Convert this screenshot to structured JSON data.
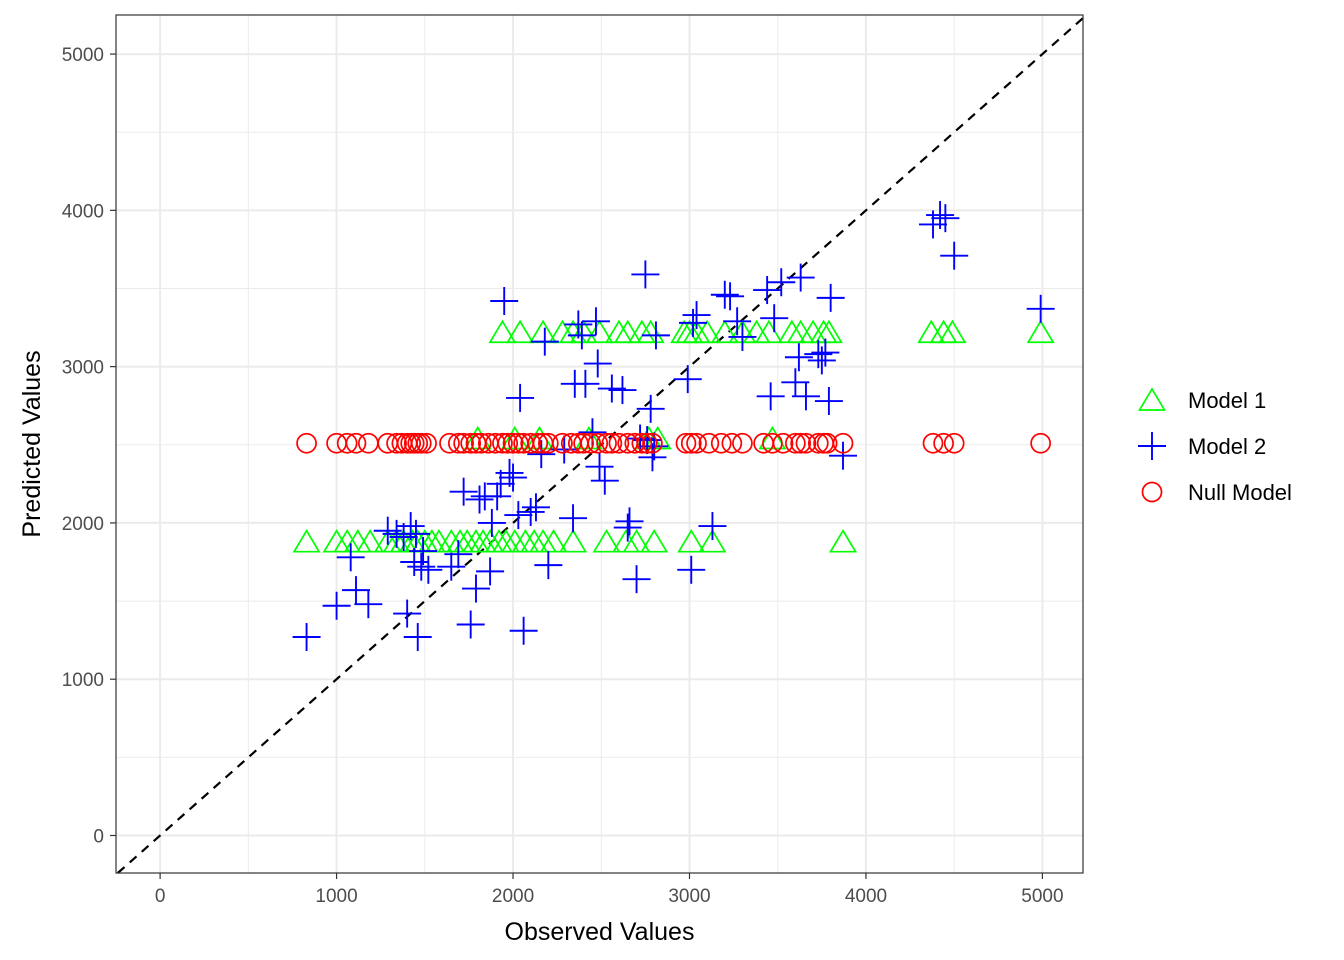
{
  "chart_data": {
    "type": "scatter",
    "title": "",
    "xlabel": "Observed Values",
    "ylabel": "Predicted Values",
    "xlim": [
      -250,
      5230
    ],
    "ylim": [
      -240,
      5250
    ],
    "x_ticks": [
      "0",
      "1000",
      "2000",
      "3000",
      "4000",
      "5000"
    ],
    "y_ticks": [
      "0",
      "1000",
      "2000",
      "3000",
      "4000",
      "5000"
    ],
    "grid": true,
    "reference_line": {
      "type": "y=x",
      "style": "dashed",
      "color": "#000000"
    },
    "legend_position": "right",
    "series": [
      {
        "name": "Model 1",
        "marker": "triangle",
        "color": "#00ff00",
        "points": [
          [
            830,
            1880
          ],
          [
            1000,
            1880
          ],
          [
            1060,
            1880
          ],
          [
            1120,
            1880
          ],
          [
            1190,
            1880
          ],
          [
            1290,
            1880
          ],
          [
            1340,
            1880
          ],
          [
            1380,
            1880
          ],
          [
            1430,
            1880
          ],
          [
            1460,
            1880
          ],
          [
            1500,
            1880
          ],
          [
            1540,
            1880
          ],
          [
            1580,
            1880
          ],
          [
            1650,
            1880
          ],
          [
            1700,
            1880
          ],
          [
            1740,
            1880
          ],
          [
            1790,
            1880
          ],
          [
            1830,
            1880
          ],
          [
            1870,
            1880
          ],
          [
            1920,
            1880
          ],
          [
            1960,
            1880
          ],
          [
            2010,
            1880
          ],
          [
            2070,
            1880
          ],
          [
            2120,
            1880
          ],
          [
            2170,
            1880
          ],
          [
            2230,
            1880
          ],
          [
            2340,
            1880
          ],
          [
            2530,
            1880
          ],
          [
            2640,
            1880
          ],
          [
            2700,
            1880
          ],
          [
            2800,
            1880
          ],
          [
            3010,
            1880
          ],
          [
            3130,
            1880
          ],
          [
            3870,
            1880
          ],
          [
            1800,
            2540
          ],
          [
            2010,
            2540
          ],
          [
            2150,
            2540
          ],
          [
            2430,
            2540
          ],
          [
            2770,
            2540
          ],
          [
            2820,
            2540
          ],
          [
            3470,
            2540
          ],
          [
            1940,
            3220
          ],
          [
            2040,
            3220
          ],
          [
            2170,
            3220
          ],
          [
            2280,
            3220
          ],
          [
            2340,
            3220
          ],
          [
            2400,
            3220
          ],
          [
            2490,
            3220
          ],
          [
            2600,
            3220
          ],
          [
            2650,
            3220
          ],
          [
            2730,
            3220
          ],
          [
            2780,
            3220
          ],
          [
            2970,
            3220
          ],
          [
            3000,
            3220
          ],
          [
            3040,
            3220
          ],
          [
            3100,
            3220
          ],
          [
            3200,
            3220
          ],
          [
            3300,
            3220
          ],
          [
            3380,
            3220
          ],
          [
            3450,
            3220
          ],
          [
            3580,
            3220
          ],
          [
            3630,
            3220
          ],
          [
            3700,
            3220
          ],
          [
            3760,
            3220
          ],
          [
            3790,
            3220
          ],
          [
            4370,
            3220
          ],
          [
            4440,
            3220
          ],
          [
            4490,
            3220
          ],
          [
            4990,
            3220
          ]
        ]
      },
      {
        "name": "Model 2",
        "marker": "plus",
        "color": "#0000ff",
        "points": [
          [
            830,
            1270
          ],
          [
            1000,
            1470
          ],
          [
            1080,
            1780
          ],
          [
            1110,
            1570
          ],
          [
            1180,
            1480
          ],
          [
            1290,
            1950
          ],
          [
            1340,
            1930
          ],
          [
            1380,
            1910
          ],
          [
            1400,
            1420
          ],
          [
            1420,
            1980
          ],
          [
            1440,
            1750
          ],
          [
            1450,
            1930
          ],
          [
            1460,
            1270
          ],
          [
            1480,
            1720
          ],
          [
            1490,
            1820
          ],
          [
            1520,
            1700
          ],
          [
            1650,
            1720
          ],
          [
            1690,
            1800
          ],
          [
            1720,
            2200
          ],
          [
            1760,
            1350
          ],
          [
            1790,
            1580
          ],
          [
            1810,
            2150
          ],
          [
            1840,
            2170
          ],
          [
            1870,
            1690
          ],
          [
            1880,
            2000
          ],
          [
            1910,
            2170
          ],
          [
            1930,
            2250
          ],
          [
            1950,
            3420
          ],
          [
            1980,
            2320
          ],
          [
            2000,
            2290
          ],
          [
            2030,
            2050
          ],
          [
            2040,
            2800
          ],
          [
            2060,
            1310
          ],
          [
            2100,
            2070
          ],
          [
            2130,
            2100
          ],
          [
            2160,
            2440
          ],
          [
            2180,
            3160
          ],
          [
            2200,
            1730
          ],
          [
            2290,
            2470
          ],
          [
            2340,
            2030
          ],
          [
            2350,
            2890
          ],
          [
            2370,
            3270
          ],
          [
            2390,
            3200
          ],
          [
            2410,
            2890
          ],
          [
            2450,
            2580
          ],
          [
            2470,
            3290
          ],
          [
            2480,
            3020
          ],
          [
            2490,
            2360
          ],
          [
            2520,
            2270
          ],
          [
            2560,
            2860
          ],
          [
            2620,
            2850
          ],
          [
            2650,
            1970
          ],
          [
            2660,
            2010
          ],
          [
            2700,
            1640
          ],
          [
            2720,
            2540
          ],
          [
            2750,
            3590
          ],
          [
            2760,
            2530
          ],
          [
            2780,
            2730
          ],
          [
            2790,
            2420
          ],
          [
            2800,
            2490
          ],
          [
            2810,
            3200
          ],
          [
            2990,
            2920
          ],
          [
            3010,
            1700
          ],
          [
            3020,
            3280
          ],
          [
            3040,
            3330
          ],
          [
            3130,
            1980
          ],
          [
            3200,
            3460
          ],
          [
            3230,
            3450
          ],
          [
            3270,
            3290
          ],
          [
            3300,
            3190
          ],
          [
            3440,
            3490
          ],
          [
            3460,
            2810
          ],
          [
            3480,
            3310
          ],
          [
            3520,
            3540
          ],
          [
            3600,
            2900
          ],
          [
            3620,
            3060
          ],
          [
            3630,
            3570
          ],
          [
            3660,
            2810
          ],
          [
            3730,
            3080
          ],
          [
            3750,
            3040
          ],
          [
            3770,
            3090
          ],
          [
            3790,
            2780
          ],
          [
            3800,
            3440
          ],
          [
            3870,
            2430
          ],
          [
            4380,
            3910
          ],
          [
            4420,
            3970
          ],
          [
            4450,
            3950
          ],
          [
            4500,
            3710
          ],
          [
            4990,
            3370
          ]
        ]
      },
      {
        "name": "Null Model",
        "marker": "circle",
        "color": "#ff0000",
        "points": [
          [
            830,
            2510
          ],
          [
            1000,
            2510
          ],
          [
            1060,
            2510
          ],
          [
            1110,
            2510
          ],
          [
            1180,
            2510
          ],
          [
            1290,
            2510
          ],
          [
            1340,
            2510
          ],
          [
            1370,
            2510
          ],
          [
            1400,
            2510
          ],
          [
            1420,
            2510
          ],
          [
            1440,
            2510
          ],
          [
            1460,
            2510
          ],
          [
            1480,
            2510
          ],
          [
            1510,
            2510
          ],
          [
            1640,
            2510
          ],
          [
            1690,
            2510
          ],
          [
            1720,
            2510
          ],
          [
            1760,
            2510
          ],
          [
            1790,
            2510
          ],
          [
            1820,
            2510
          ],
          [
            1860,
            2510
          ],
          [
            1900,
            2510
          ],
          [
            1940,
            2510
          ],
          [
            1970,
            2510
          ],
          [
            2000,
            2510
          ],
          [
            2030,
            2510
          ],
          [
            2060,
            2510
          ],
          [
            2100,
            2510
          ],
          [
            2140,
            2510
          ],
          [
            2170,
            2510
          ],
          [
            2200,
            2510
          ],
          [
            2280,
            2510
          ],
          [
            2330,
            2510
          ],
          [
            2370,
            2510
          ],
          [
            2400,
            2510
          ],
          [
            2440,
            2510
          ],
          [
            2480,
            2510
          ],
          [
            2530,
            2510
          ],
          [
            2560,
            2510
          ],
          [
            2600,
            2510
          ],
          [
            2650,
            2510
          ],
          [
            2690,
            2510
          ],
          [
            2730,
            2510
          ],
          [
            2760,
            2510
          ],
          [
            2790,
            2510
          ],
          [
            2980,
            2510
          ],
          [
            3010,
            2510
          ],
          [
            3040,
            2510
          ],
          [
            3110,
            2510
          ],
          [
            3180,
            2510
          ],
          [
            3240,
            2510
          ],
          [
            3300,
            2510
          ],
          [
            3420,
            2510
          ],
          [
            3470,
            2510
          ],
          [
            3530,
            2510
          ],
          [
            3600,
            2510
          ],
          [
            3630,
            2510
          ],
          [
            3660,
            2510
          ],
          [
            3730,
            2510
          ],
          [
            3760,
            2510
          ],
          [
            3780,
            2510
          ],
          [
            3870,
            2510
          ],
          [
            4380,
            2510
          ],
          [
            4440,
            2510
          ],
          [
            4500,
            2510
          ],
          [
            4990,
            2510
          ]
        ]
      }
    ]
  }
}
